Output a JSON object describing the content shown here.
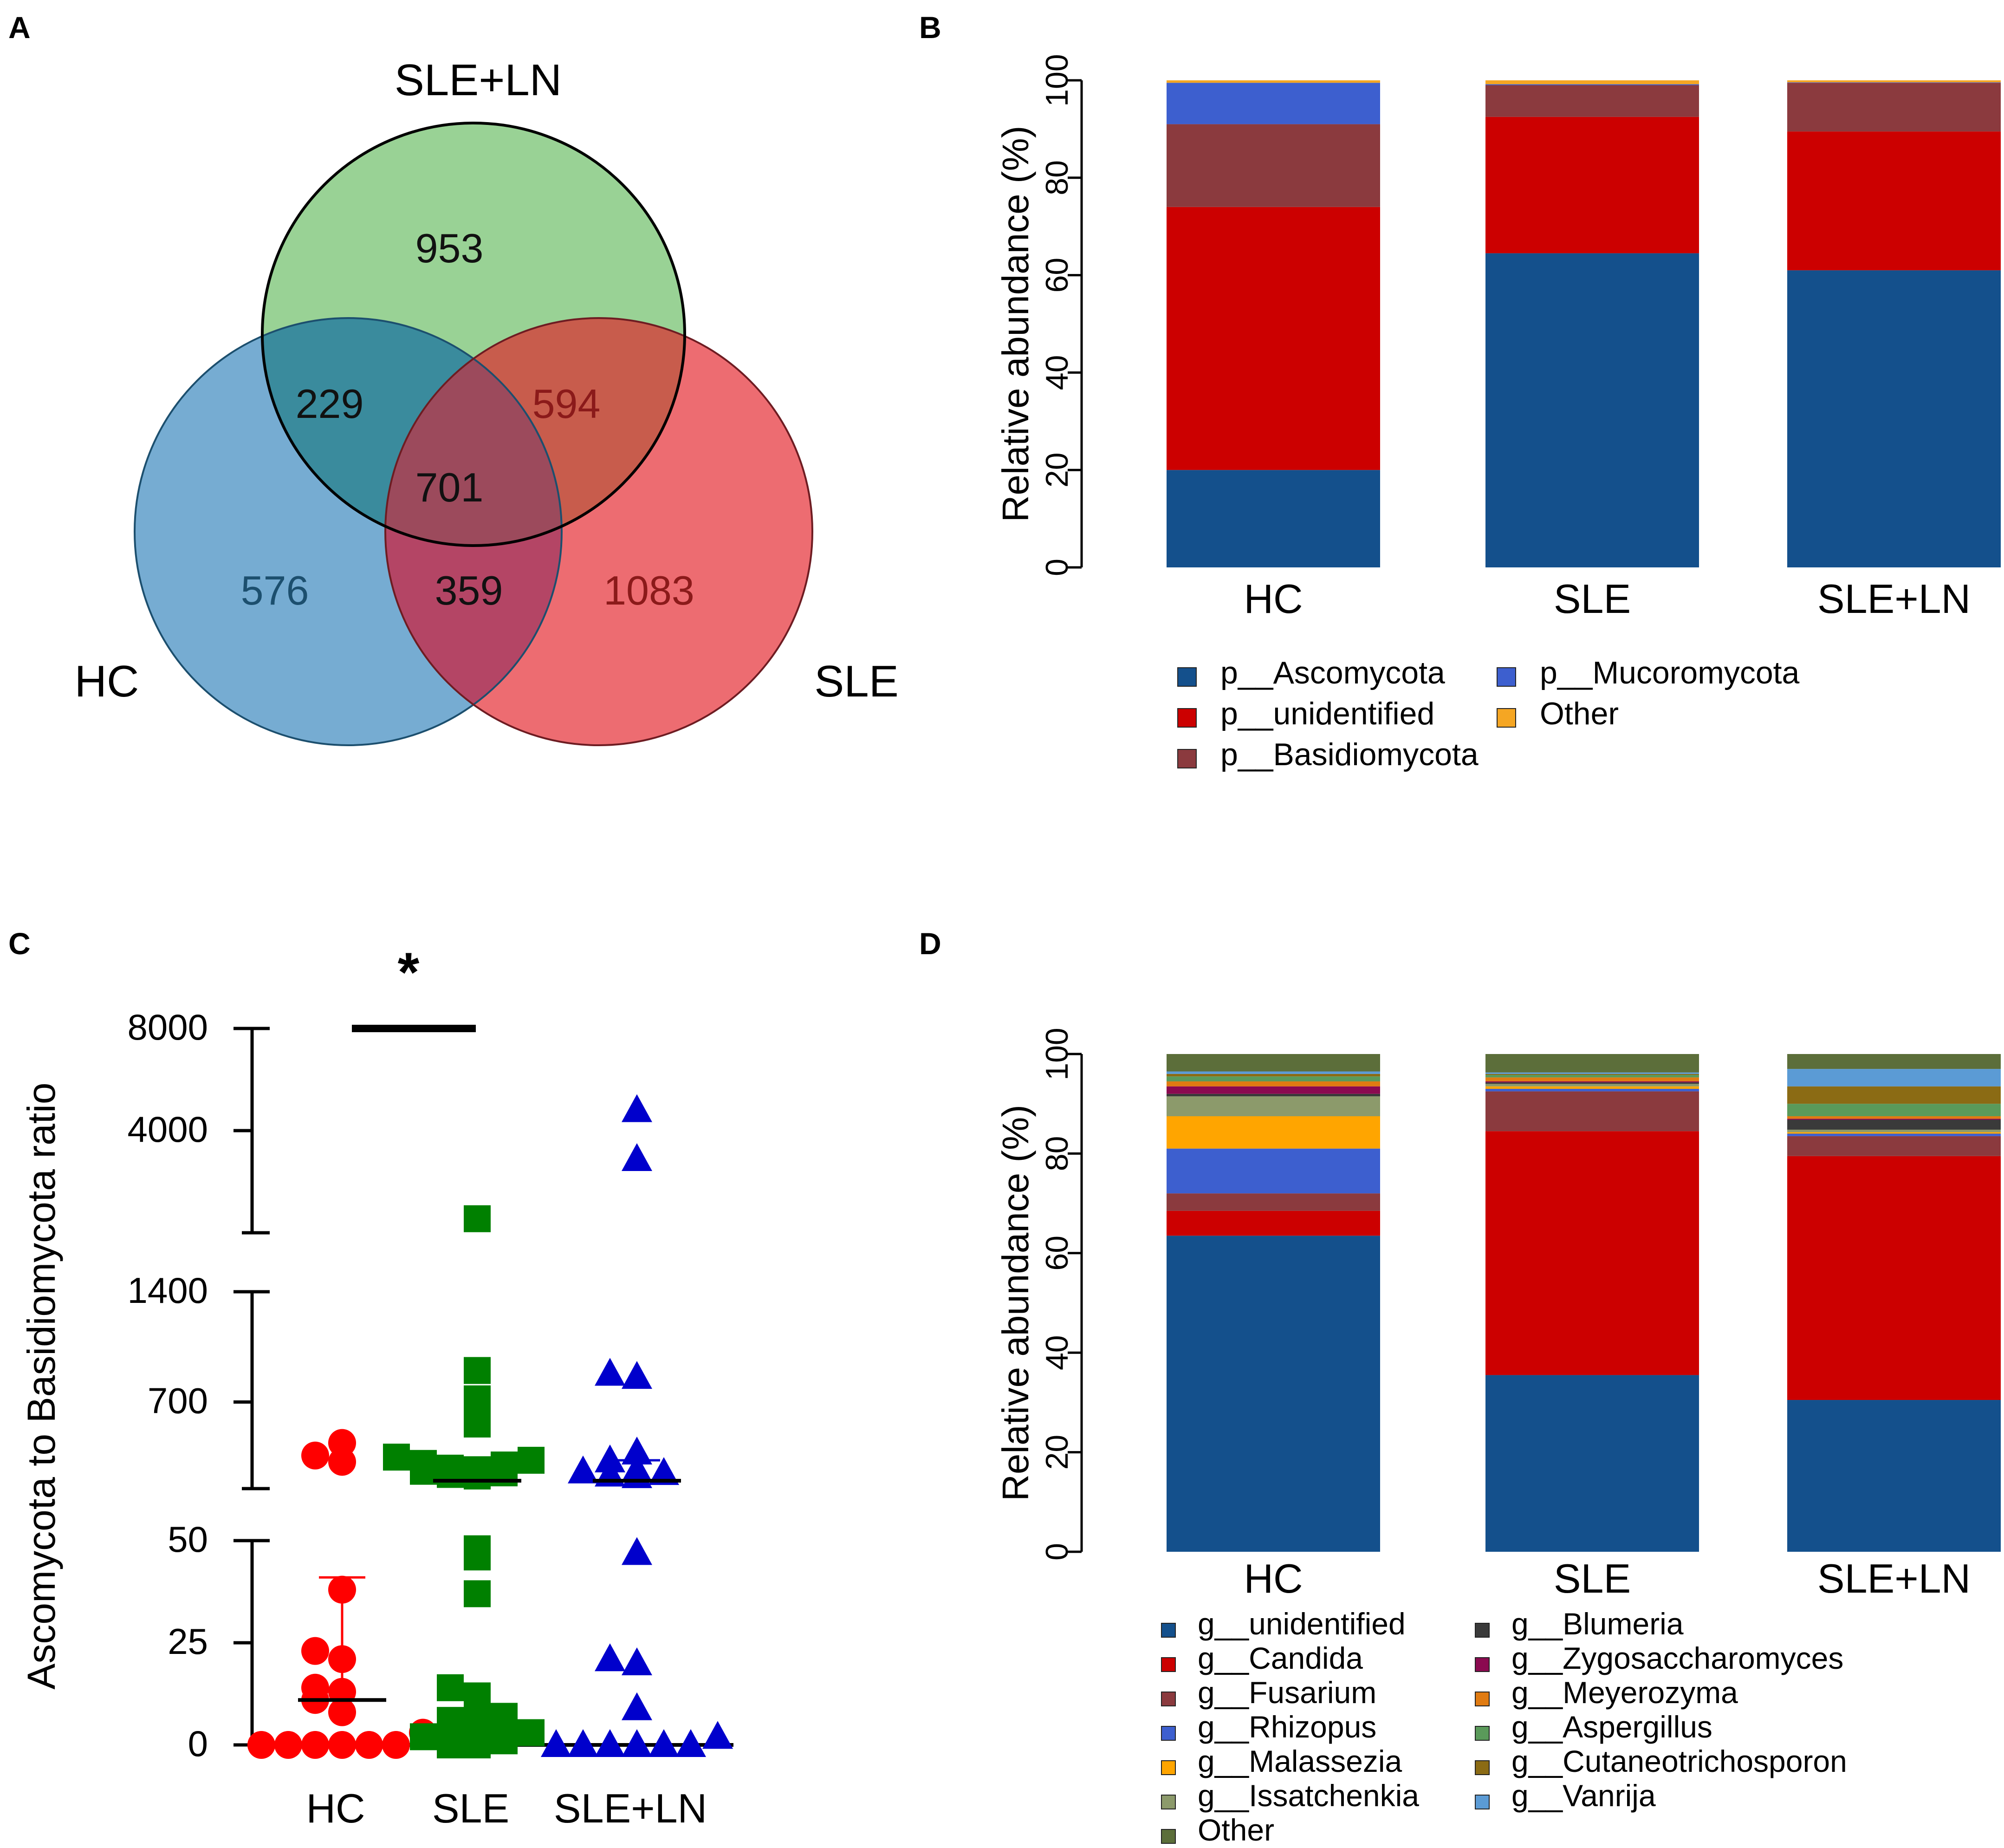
{
  "panels": {
    "A": {
      "label": "A",
      "sets": {
        "hc": "HC",
        "sle": "SLE",
        "sle_ln": "SLE+LN"
      },
      "counts": {
        "sle_ln_only": "953",
        "hc_sle_ln": "229",
        "sle_sle_ln": "594",
        "all": "701",
        "hc_only": "576",
        "hc_sle": "359",
        "sle_only": "1083"
      },
      "colors": {
        "hc": "#6fa8d0",
        "sle": "#ec6469",
        "sle_ln": "#93d08f"
      }
    },
    "B": {
      "label": "B"
    },
    "C": {
      "label": "C",
      "significance": "*"
    },
    "D": {
      "label": "D"
    }
  },
  "chart_data": [
    {
      "id": "B",
      "type": "bar",
      "stacked": true,
      "title": "",
      "ylabel": "Relative abundance (%)",
      "xlabel": "",
      "ylim": [
        0,
        100
      ],
      "yticks": [
        "0",
        "20",
        "40",
        "60",
        "80",
        "100"
      ],
      "categories": [
        "HC",
        "SLE",
        "SLE+LN"
      ],
      "series": [
        {
          "name": "p__Ascomycota",
          "color": "#14508c",
          "values": [
            20,
            64.5,
            61
          ]
        },
        {
          "name": "p__unidentified",
          "color": "#cc0000",
          "values": [
            54,
            28,
            28.5
          ]
        },
        {
          "name": "p__Basidiomycota",
          "color": "#8b3a3e",
          "values": [
            17,
            6.5,
            10
          ]
        },
        {
          "name": "p__Mucoromycota",
          "color": "#3d5fcf",
          "values": [
            8.5,
            0.2,
            0.1
          ]
        },
        {
          "name": "Other",
          "color": "#f5a623",
          "values": [
            0.5,
            0.8,
            0.4
          ]
        }
      ],
      "legend_order": [
        "p__Ascomycota",
        "p__Mucoromycota",
        "p__unidentified",
        "Other",
        "p__Basidiomycota"
      ]
    },
    {
      "id": "C",
      "type": "scatter",
      "title": "",
      "ylabel": "Ascomycota to Basidiomycota ratio",
      "xlabel": "",
      "categories": [
        "HC",
        "SLE",
        "SLE+LN"
      ],
      "y_segments": [
        {
          "range": [
            0,
            50
          ],
          "ticks": [
            "0",
            "25",
            "50"
          ]
        },
        {
          "range": [
            150,
            1400
          ],
          "ticks": [
            "700",
            "1400"
          ]
        },
        {
          "range": [
            2000,
            8000
          ],
          "ticks": [
            "4000",
            "8000"
          ]
        }
      ],
      "series": [
        {
          "name": "HC",
          "color": "#ff0000",
          "marker": "circle",
          "median": 11,
          "q3": 41,
          "values": [
            0,
            0,
            0,
            0,
            0,
            0,
            3,
            8,
            11,
            13,
            14,
            21,
            23,
            38,
            320,
            360,
            440
          ]
        },
        {
          "name": "SLE",
          "color": "#008000",
          "marker": "square",
          "median": 200,
          "q3": 320,
          "values": [
            0,
            0,
            1,
            2,
            3,
            5,
            6,
            7,
            9,
            12,
            14,
            37,
            46,
            48,
            230,
            240,
            250,
            260,
            270,
            280,
            300,
            310,
            330,
            350,
            560,
            720,
            900,
            2200
          ]
        },
        {
          "name": "SLE+LN",
          "color": "#0000cc",
          "marker": "triangle",
          "median": 200,
          "q3": 330,
          "values": [
            0,
            0,
            0,
            0,
            0,
            0,
            2,
            9,
            20,
            21,
            47,
            230,
            240,
            250,
            260,
            270,
            330,
            380,
            860,
            880,
            3300,
            4600
          ]
        }
      ],
      "significance": {
        "between": [
          "HC",
          "SLE"
        ],
        "label": "*"
      }
    },
    {
      "id": "D",
      "type": "bar",
      "stacked": true,
      "title": "",
      "ylabel": "Relative abundance (%)",
      "xlabel": "",
      "ylim": [
        0,
        100
      ],
      "yticks": [
        "0",
        "20",
        "40",
        "60",
        "80",
        "100"
      ],
      "categories": [
        "HC",
        "SLE",
        "SLE+LN"
      ],
      "series": [
        {
          "name": "g__unidentified",
          "color": "#14508c",
          "values": [
            63.5,
            35.5,
            30.5
          ]
        },
        {
          "name": "g__Candida",
          "color": "#cc0000",
          "values": [
            5,
            49,
            49
          ]
        },
        {
          "name": "g__Fusarium",
          "color": "#8b3a3e",
          "values": [
            3.5,
            8,
            4
          ]
        },
        {
          "name": "g__Rhizopus",
          "color": "#3d5fcf",
          "values": [
            9,
            0.5,
            0.5
          ]
        },
        {
          "name": "g__Malassezia",
          "color": "#ffa500",
          "values": [
            6.5,
            0.5,
            0.3
          ]
        },
        {
          "name": "g__Issatchenkia",
          "color": "#8c9a6b",
          "values": [
            4,
            0.5,
            0.5
          ]
        },
        {
          "name": "g__Blumeria",
          "color": "#3a3a3a",
          "values": [
            0.5,
            0.3,
            2
          ]
        },
        {
          "name": "g__Zygosaccharomyces",
          "color": "#8b0a50",
          "values": [
            1.5,
            0.2,
            0.2
          ]
        },
        {
          "name": "g__Meyerozyma",
          "color": "#e07b12",
          "values": [
            1,
            0.8,
            0.5
          ]
        },
        {
          "name": "g__Aspergillus",
          "color": "#5a9a5a",
          "values": [
            1,
            0.5,
            2.5
          ]
        },
        {
          "name": "g__Cutaneotrichosporon",
          "color": "#8b6b14",
          "values": [
            0.5,
            0.2,
            3.5
          ]
        },
        {
          "name": "g__Vanrija",
          "color": "#5b9bd5",
          "values": [
            0.5,
            0.3,
            3.5
          ]
        },
        {
          "name": "Other",
          "color": "#5c6e3a",
          "values": [
            3.5,
            3.7,
            3
          ]
        }
      ],
      "legend_order": [
        "g__unidentified",
        "g__Blumeria",
        "g__Candida",
        "g__Zygosaccharomyces",
        "g__Fusarium",
        "g__Meyerozyma",
        "g__Rhizopus",
        "g__Aspergillus",
        "g__Malassezia",
        "g__Cutaneotrichosporon",
        "g__Issatchenkia",
        "g__Vanrija",
        "Other"
      ]
    }
  ]
}
